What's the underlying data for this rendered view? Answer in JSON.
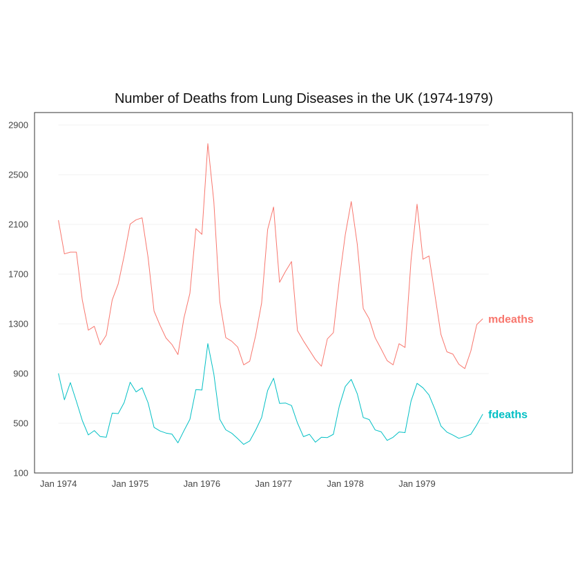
{
  "chart_data": {
    "type": "line",
    "title": "Number of Deaths from Lung Diseases in the UK (1974-1979)",
    "xlabel": "",
    "ylabel": "",
    "ylim": [
      100,
      3000
    ],
    "y_ticks": [
      100,
      500,
      900,
      1300,
      1700,
      2100,
      2500,
      2900
    ],
    "x_ticks": [
      {
        "label": "Jan 1974",
        "x": 0
      },
      {
        "label": "Jan 1975",
        "x": 12
      },
      {
        "label": "Jan 1976",
        "x": 24
      },
      {
        "label": "Jan 1977",
        "x": 36
      },
      {
        "label": "Jan 1978",
        "x": 48
      },
      {
        "label": "Jan 1979",
        "x": 60
      }
    ],
    "x_range": [
      -4,
      86
    ],
    "grid": true,
    "legend": "direct labels at line ends",
    "series": [
      {
        "name": "mdeaths",
        "color": "#F8766D",
        "values": [
          2134,
          1863,
          1877,
          1877,
          1492,
          1249,
          1280,
          1131,
          1209,
          1492,
          1621,
          1846,
          2103,
          2137,
          2153,
          1833,
          1403,
          1288,
          1186,
          1133,
          1053,
          1347,
          1545,
          2066,
          2020,
          2750,
          2283,
          1479,
          1189,
          1160,
          1113,
          970,
          999,
          1208,
          1467,
          2059,
          2240,
          1634,
          1722,
          1801,
          1246,
          1162,
          1087,
          1013,
          959,
          1179,
          1229,
          1655,
          2019,
          2284,
          1942,
          1423,
          1340,
          1187,
          1098,
          1004,
          970,
          1140,
          1110,
          1812,
          2263,
          1820,
          1846,
          1531,
          1215,
          1075,
          1056,
          975,
          940,
          1081,
          1294,
          1341
        ]
      },
      {
        "name": "fdeaths",
        "color": "#00BFC4",
        "values": [
          901,
          689,
          827,
          677,
          522,
          406,
          441,
          393,
          387,
          582,
          578,
          666,
          830,
          752,
          785,
          664,
          467,
          438,
          421,
          412,
          343,
          440,
          531,
          771,
          767,
          1141,
          896,
          532,
          447,
          420,
          376,
          330,
          357,
          445,
          546,
          764,
          862,
          660,
          663,
          643,
          502,
          392,
          411,
          348,
          387,
          385,
          411,
          638,
          796,
          853,
          737,
          546,
          530,
          446,
          431,
          362,
          387,
          430,
          425,
          679,
          821,
          785,
          727,
          612,
          478,
          429,
          405,
          379,
          393,
          411,
          487,
          574
        ]
      }
    ]
  }
}
